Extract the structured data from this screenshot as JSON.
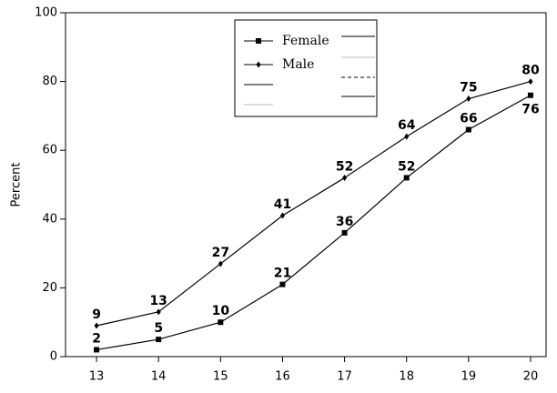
{
  "chart_data": {
    "type": "line",
    "y_label": "Percent",
    "x": [
      13,
      14,
      15,
      16,
      17,
      18,
      19,
      20
    ],
    "xlim": [
      12.5,
      20.25
    ],
    "xticks": [
      13,
      14,
      15,
      16,
      17,
      18,
      19,
      20
    ],
    "ylim": [
      0,
      100
    ],
    "yticks": [
      0,
      20,
      40,
      60,
      80,
      100
    ],
    "series": [
      {
        "name": "Female",
        "color": "#000000",
        "marker": "square",
        "values": [
          2,
          5,
          10,
          21,
          36,
          52,
          66,
          76
        ]
      },
      {
        "name": "Male",
        "color": "#000000",
        "marker": "diamond",
        "values": [
          9,
          13,
          27,
          41,
          52,
          64,
          75,
          80
        ]
      }
    ]
  }
}
